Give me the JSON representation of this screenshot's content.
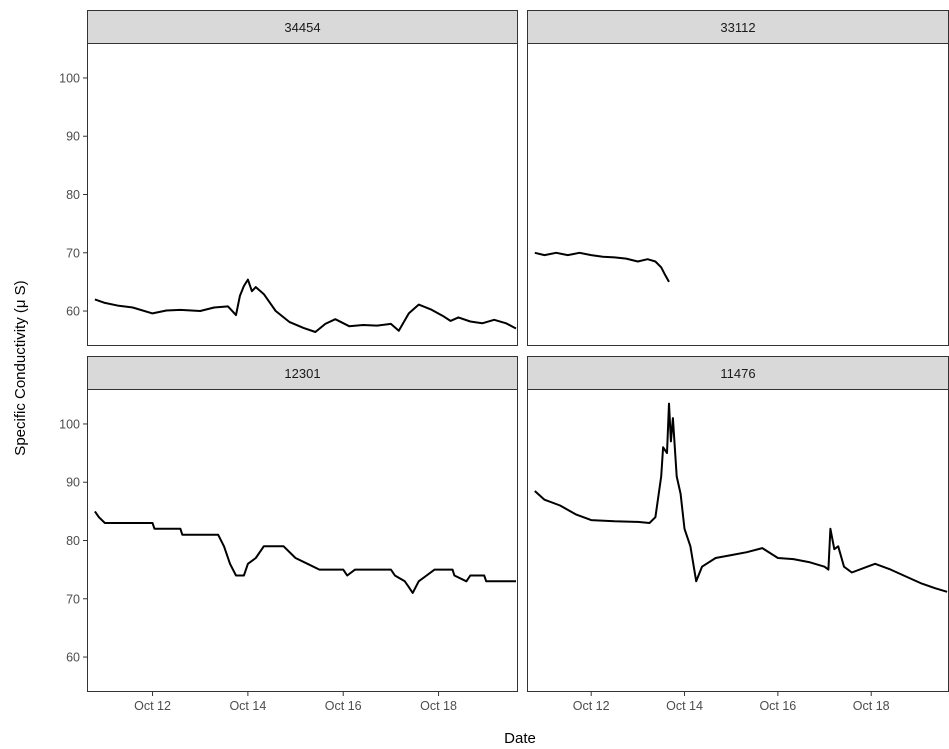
{
  "chart_data": {
    "type": "line",
    "xlabel": "Date",
    "ylabel": "Specific Conductivity (μ S)",
    "ylim": [
      54,
      106
    ],
    "xlim": [
      "2023-10-10T15:00",
      "2023-10-19T16:00"
    ],
    "y_ticks": [
      60,
      70,
      80,
      90,
      100
    ],
    "x_ticks": [
      {
        "date": "2023-10-12",
        "label": "Oct 12"
      },
      {
        "date": "2023-10-14",
        "label": "Oct 14"
      },
      {
        "date": "2023-10-16",
        "label": "Oct 16"
      },
      {
        "date": "2023-10-18",
        "label": "Oct 18"
      }
    ],
    "line_color": "#000000",
    "strip_color": "#d9d9d9",
    "panels": [
      {
        "title": "34454",
        "series": [
          {
            "values": [
              [
                "2023-10-10T19:00",
                62.0
              ],
              [
                "2023-10-11T00:00",
                61.4
              ],
              [
                "2023-10-11T07:00",
                60.9
              ],
              [
                "2023-10-11T14:00",
                60.6
              ],
              [
                "2023-10-12T00:00",
                59.6
              ],
              [
                "2023-10-12T07:00",
                60.1
              ],
              [
                "2023-10-12T14:00",
                60.2
              ],
              [
                "2023-10-13T00:00",
                60.0
              ],
              [
                "2023-10-13T07:00",
                60.6
              ],
              [
                "2023-10-13T14:00",
                60.8
              ],
              [
                "2023-10-13T18:00",
                59.3
              ],
              [
                "2023-10-13T20:00",
                62.6
              ],
              [
                "2023-10-13T22:00",
                64.3
              ],
              [
                "2023-10-14T00:00",
                65.4
              ],
              [
                "2023-10-14T02:00",
                63.4
              ],
              [
                "2023-10-14T04:00",
                64.1
              ],
              [
                "2023-10-14T08:00",
                62.9
              ],
              [
                "2023-10-14T14:00",
                60.0
              ],
              [
                "2023-10-14T21:00",
                58.1
              ],
              [
                "2023-10-15T04:00",
                57.1
              ],
              [
                "2023-10-15T10:00",
                56.4
              ],
              [
                "2023-10-15T15:00",
                57.8
              ],
              [
                "2023-10-15T20:00",
                58.6
              ],
              [
                "2023-10-16T03:00",
                57.4
              ],
              [
                "2023-10-16T10:00",
                57.6
              ],
              [
                "2023-10-16T17:00",
                57.5
              ],
              [
                "2023-10-17T00:00",
                57.8
              ],
              [
                "2023-10-17T04:00",
                56.6
              ],
              [
                "2023-10-17T09:00",
                59.6
              ],
              [
                "2023-10-17T14:00",
                61.1
              ],
              [
                "2023-10-17T20:00",
                60.3
              ],
              [
                "2023-10-18T02:00",
                59.2
              ],
              [
                "2023-10-18T06:00",
                58.3
              ],
              [
                "2023-10-18T10:00",
                58.9
              ],
              [
                "2023-10-18T16:00",
                58.2
              ],
              [
                "2023-10-18T22:00",
                57.9
              ],
              [
                "2023-10-19T04:00",
                58.5
              ],
              [
                "2023-10-19T10:00",
                57.9
              ],
              [
                "2023-10-19T15:00",
                57.0
              ]
            ]
          }
        ]
      },
      {
        "title": "33112",
        "series": [
          {
            "values": [
              [
                "2023-10-10T19:00",
                70.0
              ],
              [
                "2023-10-11T00:00",
                69.6
              ],
              [
                "2023-10-11T06:00",
                70.0
              ],
              [
                "2023-10-11T12:00",
                69.6
              ],
              [
                "2023-10-11T18:00",
                70.0
              ],
              [
                "2023-10-12T00:00",
                69.6
              ],
              [
                "2023-10-12T06:00",
                69.3
              ],
              [
                "2023-10-12T12:00",
                69.2
              ],
              [
                "2023-10-12T18:00",
                69.0
              ],
              [
                "2023-10-13T00:00",
                68.5
              ],
              [
                "2023-10-13T05:00",
                68.9
              ],
              [
                "2023-10-13T09:00",
                68.5
              ],
              [
                "2023-10-13T12:00",
                67.5
              ],
              [
                "2023-10-13T14:00",
                66.2
              ],
              [
                "2023-10-13T16:00",
                65.0
              ]
            ]
          }
        ]
      },
      {
        "title": "12301",
        "series": [
          {
            "values": [
              [
                "2023-10-10T19:00",
                85.0
              ],
              [
                "2023-10-10T21:00",
                84.0
              ],
              [
                "2023-10-11T00:00",
                83.0
              ],
              [
                "2023-10-12T00:00",
                83.0
              ],
              [
                "2023-10-12T01:00",
                82.0
              ],
              [
                "2023-10-12T14:00",
                82.0
              ],
              [
                "2023-10-12T15:00",
                81.0
              ],
              [
                "2023-10-13T09:00",
                81.0
              ],
              [
                "2023-10-13T12:00",
                79.0
              ],
              [
                "2023-10-13T15:00",
                76.0
              ],
              [
                "2023-10-13T18:00",
                74.0
              ],
              [
                "2023-10-13T22:00",
                74.0
              ],
              [
                "2023-10-14T00:00",
                76.0
              ],
              [
                "2023-10-14T04:00",
                77.0
              ],
              [
                "2023-10-14T08:00",
                79.0
              ],
              [
                "2023-10-14T18:00",
                79.0
              ],
              [
                "2023-10-15T00:00",
                77.0
              ],
              [
                "2023-10-15T06:00",
                76.0
              ],
              [
                "2023-10-15T12:00",
                75.0
              ],
              [
                "2023-10-16T00:00",
                75.0
              ],
              [
                "2023-10-16T02:00",
                74.0
              ],
              [
                "2023-10-16T06:00",
                75.0
              ],
              [
                "2023-10-17T00:00",
                75.0
              ],
              [
                "2023-10-17T02:00",
                74.0
              ],
              [
                "2023-10-17T07:00",
                73.0
              ],
              [
                "2023-10-17T09:00",
                72.0
              ],
              [
                "2023-10-17T11:00",
                71.0
              ],
              [
                "2023-10-17T14:00",
                73.0
              ],
              [
                "2023-10-17T18:00",
                74.0
              ],
              [
                "2023-10-17T22:00",
                75.0
              ],
              [
                "2023-10-18T07:00",
                75.0
              ],
              [
                "2023-10-18T08:00",
                74.0
              ],
              [
                "2023-10-18T14:00",
                73.0
              ],
              [
                "2023-10-18T16:00",
                74.0
              ],
              [
                "2023-10-18T23:00",
                74.0
              ],
              [
                "2023-10-19T00:00",
                73.0
              ],
              [
                "2023-10-19T15:00",
                73.0
              ]
            ]
          }
        ]
      },
      {
        "title": "11476",
        "series": [
          {
            "values": [
              [
                "2023-10-10T19:00",
                88.5
              ],
              [
                "2023-10-11T00:00",
                87.0
              ],
              [
                "2023-10-11T08:00",
                86.0
              ],
              [
                "2023-10-11T16:00",
                84.5
              ],
              [
                "2023-10-12T00:00",
                83.5
              ],
              [
                "2023-10-12T12:00",
                83.3
              ],
              [
                "2023-10-13T00:00",
                83.2
              ],
              [
                "2023-10-13T06:00",
                83.0
              ],
              [
                "2023-10-13T09:00",
                84.0
              ],
              [
                "2023-10-13T12:00",
                91.0
              ],
              [
                "2023-10-13T13:00",
                96.0
              ],
              [
                "2023-10-13T15:00",
                95.0
              ],
              [
                "2023-10-13T16:00",
                103.5
              ],
              [
                "2023-10-13T17:00",
                97.0
              ],
              [
                "2023-10-13T18:00",
                101.0
              ],
              [
                "2023-10-13T20:00",
                91.0
              ],
              [
                "2023-10-13T22:00",
                88.0
              ],
              [
                "2023-10-14T00:00",
                82.0
              ],
              [
                "2023-10-14T03:00",
                79.0
              ],
              [
                "2023-10-14T06:00",
                73.0
              ],
              [
                "2023-10-14T09:00",
                75.5
              ],
              [
                "2023-10-14T16:00",
                77.0
              ],
              [
                "2023-10-15T00:00",
                77.5
              ],
              [
                "2023-10-15T08:00",
                78.0
              ],
              [
                "2023-10-15T16:00",
                78.7
              ],
              [
                "2023-10-16T00:00",
                77.0
              ],
              [
                "2023-10-16T08:00",
                76.8
              ],
              [
                "2023-10-16T16:00",
                76.3
              ],
              [
                "2023-10-17T00:00",
                75.5
              ],
              [
                "2023-10-17T02:00",
                75.0
              ],
              [
                "2023-10-17T03:00",
                82.0
              ],
              [
                "2023-10-17T05:00",
                78.5
              ],
              [
                "2023-10-17T07:00",
                79.0
              ],
              [
                "2023-10-17T10:00",
                75.5
              ],
              [
                "2023-10-17T14:00",
                74.5
              ],
              [
                "2023-10-17T22:00",
                75.5
              ],
              [
                "2023-10-18T02:00",
                76.0
              ],
              [
                "2023-10-18T10:00",
                75.0
              ],
              [
                "2023-10-18T18:00",
                73.8
              ],
              [
                "2023-10-19T02:00",
                72.6
              ],
              [
                "2023-10-19T09:00",
                71.8
              ],
              [
                "2023-10-19T15:00",
                71.2
              ]
            ]
          }
        ]
      }
    ]
  }
}
